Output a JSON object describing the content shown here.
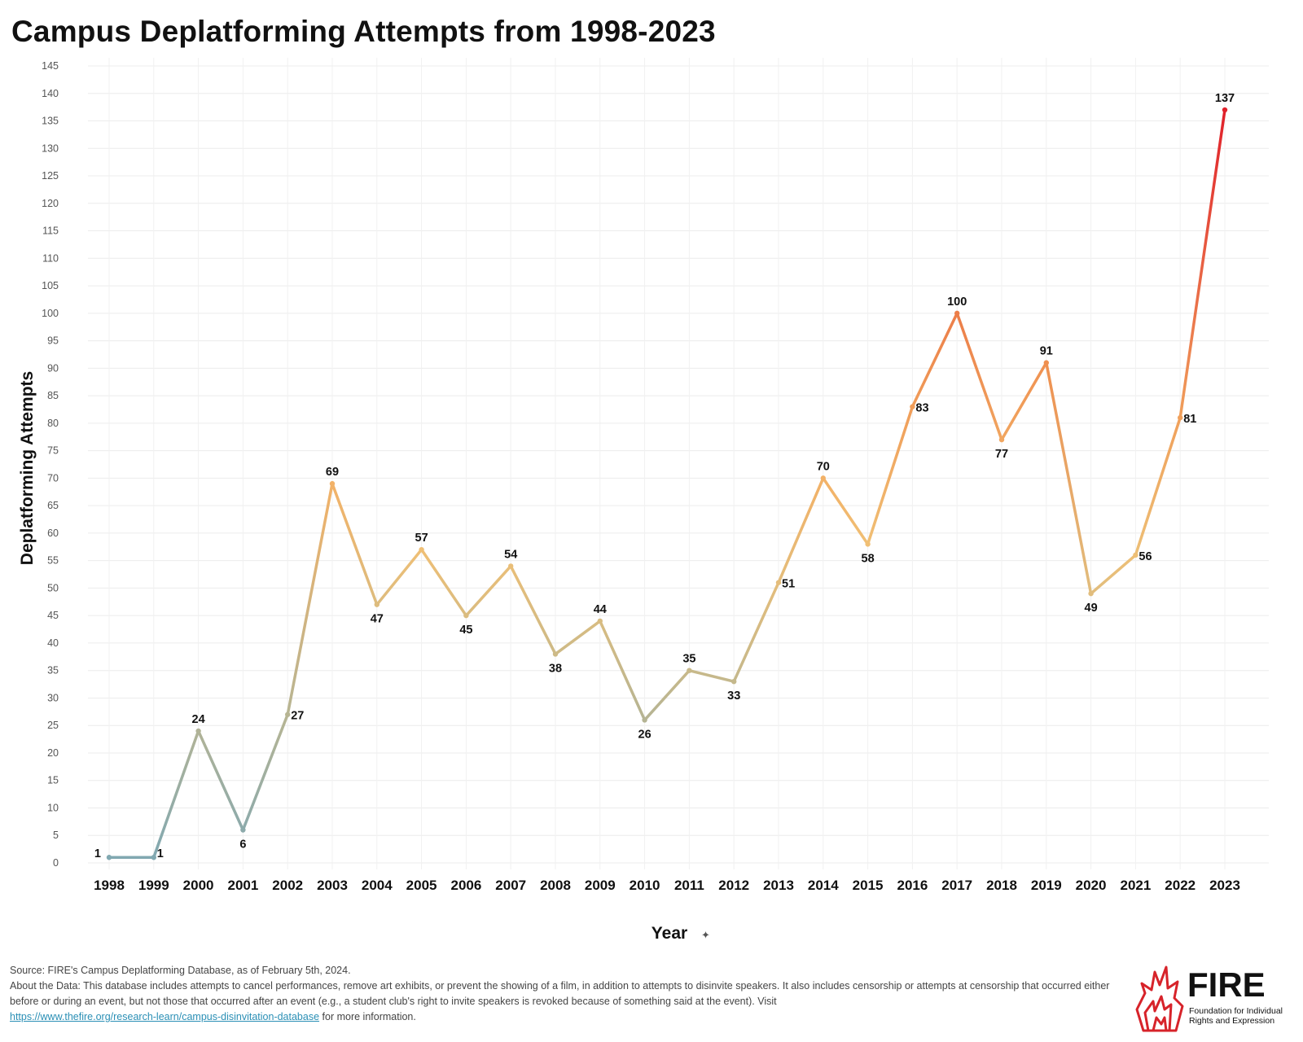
{
  "title": "Campus Deplatforming Attempts from 1998-2023",
  "chart_data": {
    "type": "line",
    "title": "Campus Deplatforming Attempts from 1998-2023",
    "xlabel": "Year",
    "ylabel": "Deplatforming Attempts",
    "categories": [
      "1998",
      "1999",
      "2000",
      "2001",
      "2002",
      "2003",
      "2004",
      "2005",
      "2006",
      "2007",
      "2008",
      "2009",
      "2010",
      "2011",
      "2012",
      "2013",
      "2014",
      "2015",
      "2016",
      "2017",
      "2018",
      "2019",
      "2020",
      "2021",
      "2022",
      "2023"
    ],
    "values": [
      1,
      1,
      24,
      6,
      27,
      69,
      47,
      57,
      45,
      54,
      38,
      44,
      26,
      35,
      33,
      51,
      70,
      58,
      83,
      100,
      77,
      91,
      49,
      56,
      81,
      137
    ],
    "ylim": [
      0,
      145
    ],
    "yticks": [
      0,
      5,
      10,
      15,
      20,
      25,
      30,
      35,
      40,
      45,
      50,
      55,
      60,
      65,
      70,
      75,
      80,
      85,
      90,
      95,
      100,
      105,
      110,
      115,
      120,
      125,
      130,
      135,
      140,
      145
    ],
    "grid": true,
    "colors": {
      "low": "#7fa7b2",
      "mid": "#c8b98a",
      "high_mid": "#f4c072",
      "high": "#ee8a4c",
      "max": "#e0202a"
    }
  },
  "footer": {
    "source": "Source: FIRE's Campus Deplatforming Database, as of February 5th, 2024.",
    "about": "About the Data: This database includes attempts to cancel performances, remove art exhibits, or prevent the showing of a film, in addition to attempts to disinvite speakers. It also includes censorship or attempts at censorship that occurred either before or during an event, but not those that occurred after an event (e.g., a student club's right to invite speakers is revoked because of something said at the event). Visit",
    "link": "https://www.thefire.org/research-learn/campus-disinvitation-database",
    "after_link": "for more information."
  },
  "logo": {
    "word": "FIRE",
    "sub": "Foundation for Individual Rights and Expression"
  }
}
